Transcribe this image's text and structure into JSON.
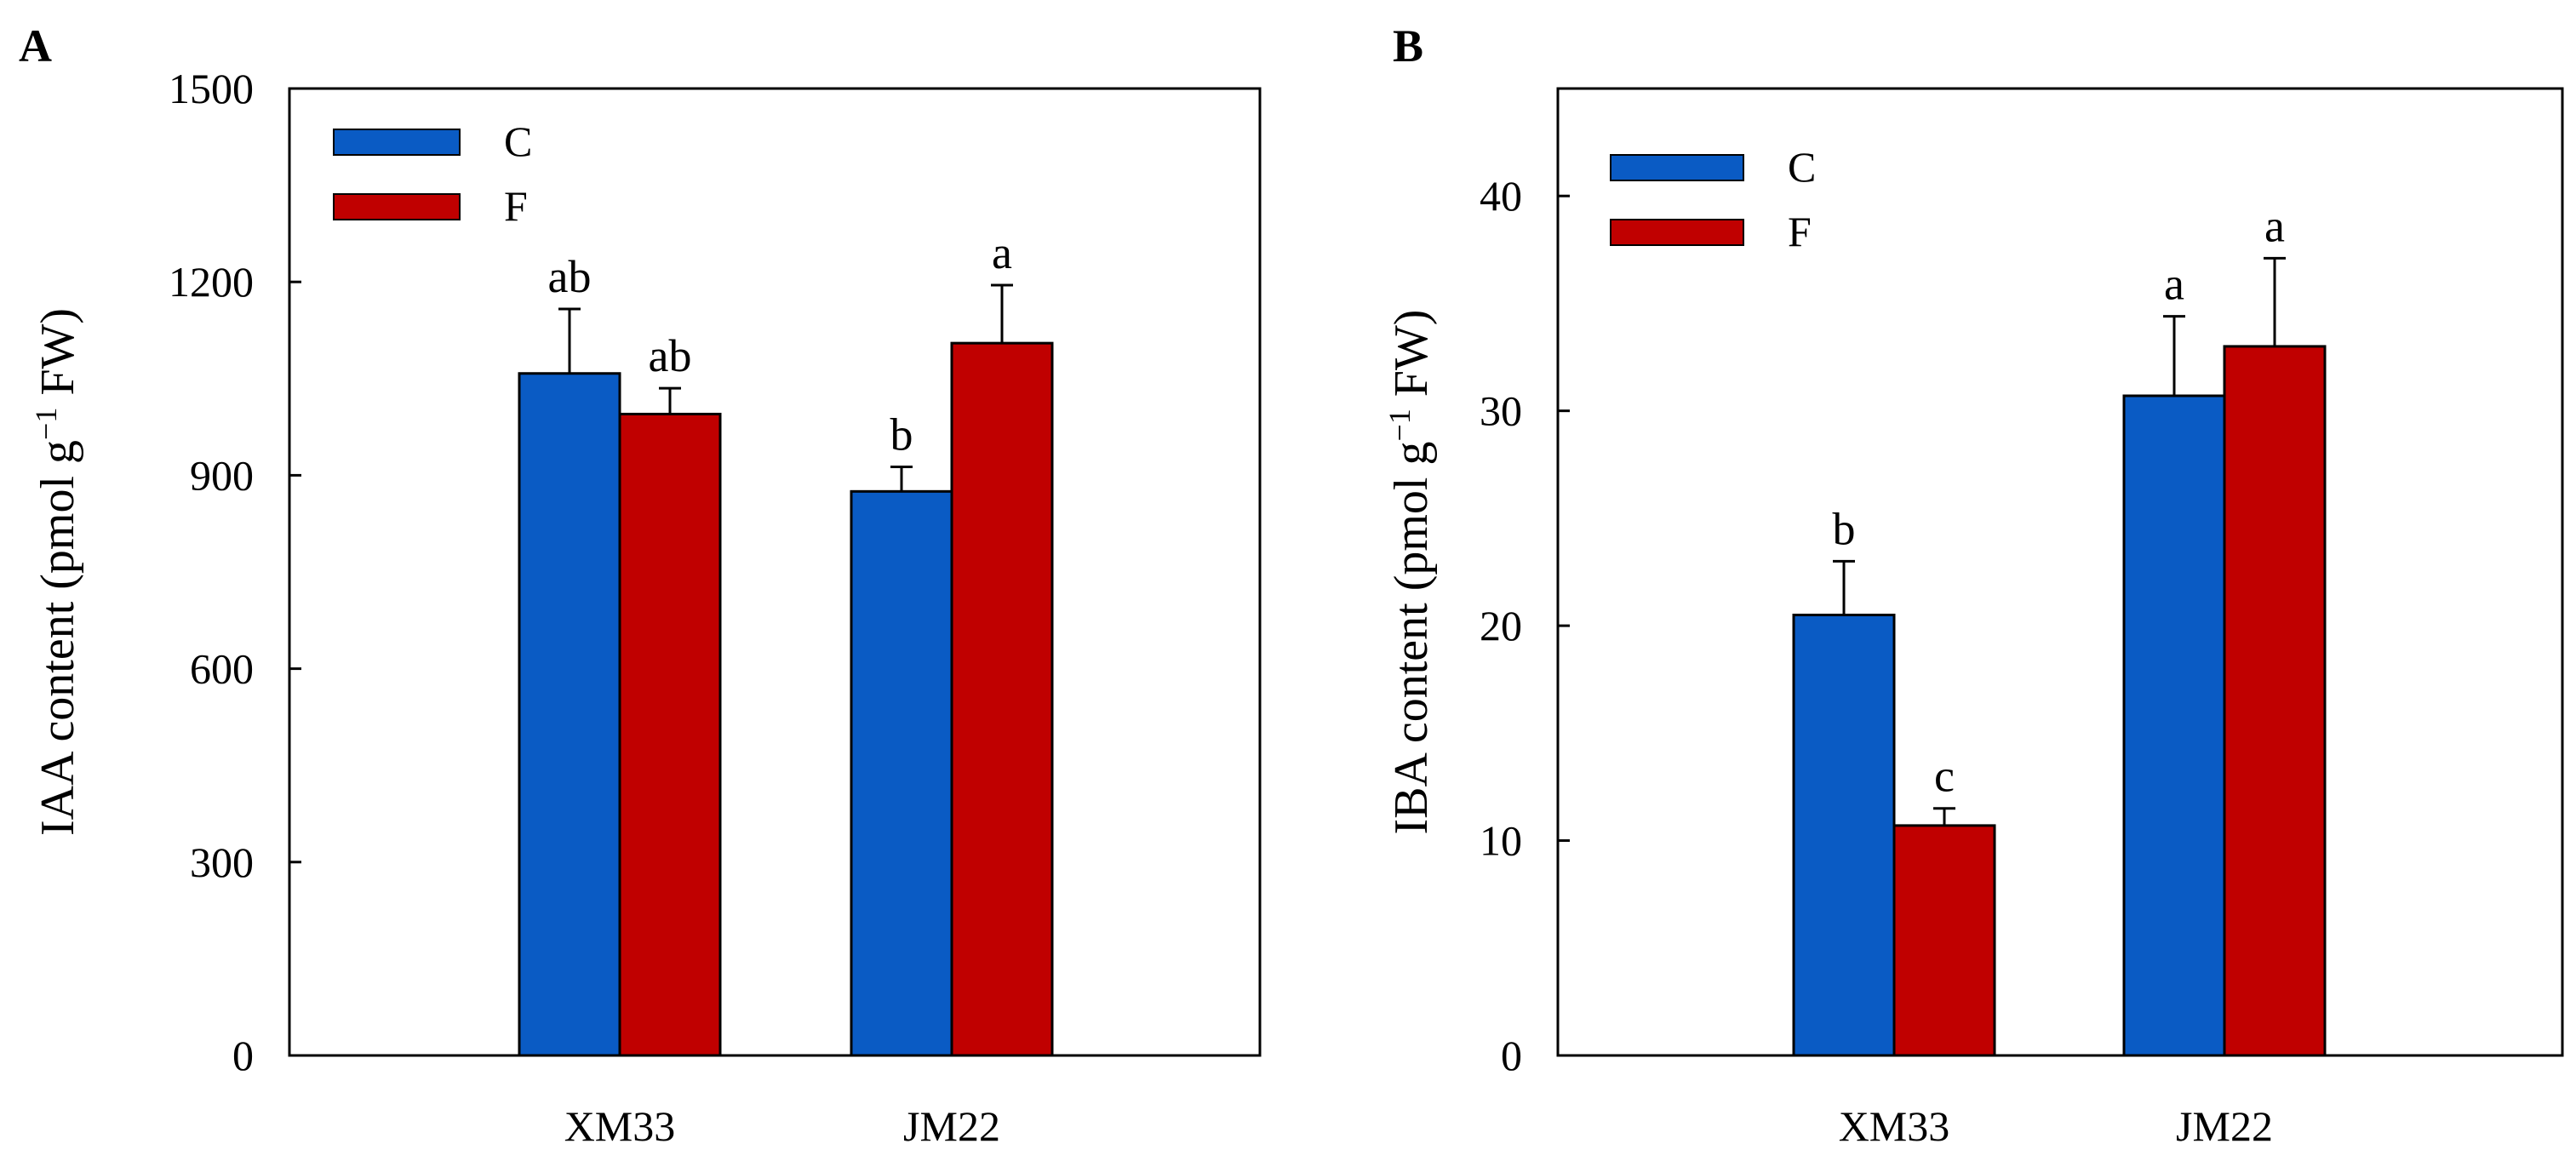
{
  "colors": {
    "C": "#0a5bc4",
    "F": "#c00000",
    "axis": "#000000"
  },
  "chart_data": [
    {
      "type": "bar",
      "panel_label": "A",
      "title": "",
      "xlabel": "",
      "ylabel": {
        "main": "IAA content (pmol g",
        "sup": "−1",
        "tail": " FW)"
      },
      "ylim": [
        0,
        1500
      ],
      "yticks": [
        0,
        300,
        600,
        900,
        1200,
        1500
      ],
      "categories": [
        "XM33",
        "JM22"
      ],
      "series": [
        {
          "name": "C",
          "values": [
            1058,
            875
          ],
          "errors": [
            100,
            38
          ],
          "letters": [
            "ab",
            "b"
          ]
        },
        {
          "name": "F",
          "values": [
            995,
            1105
          ],
          "errors": [
            40,
            90
          ],
          "letters": [
            "ab",
            "a"
          ]
        }
      ],
      "legend": {
        "position": "top-left",
        "entries": [
          "C",
          "F"
        ]
      },
      "grid": false
    },
    {
      "type": "bar",
      "panel_label": "B",
      "title": "",
      "xlabel": "",
      "ylabel": {
        "main": "IBA content (pmol g",
        "sup": "−1",
        "tail": " FW)"
      },
      "ylim": [
        0,
        45
      ],
      "yticks": [
        0,
        10,
        20,
        30,
        40
      ],
      "categories": [
        "XM33",
        "JM22"
      ],
      "series": [
        {
          "name": "C",
          "values": [
            20.5,
            30.7
          ],
          "errors": [
            2.5,
            3.7
          ],
          "letters": [
            "b",
            "a"
          ]
        },
        {
          "name": "F",
          "values": [
            10.7,
            33.0
          ],
          "errors": [
            0.8,
            4.1
          ],
          "letters": [
            "c",
            "a"
          ]
        }
      ],
      "legend": {
        "position": "top-left",
        "entries": [
          "C",
          "F"
        ]
      },
      "grid": false
    }
  ]
}
